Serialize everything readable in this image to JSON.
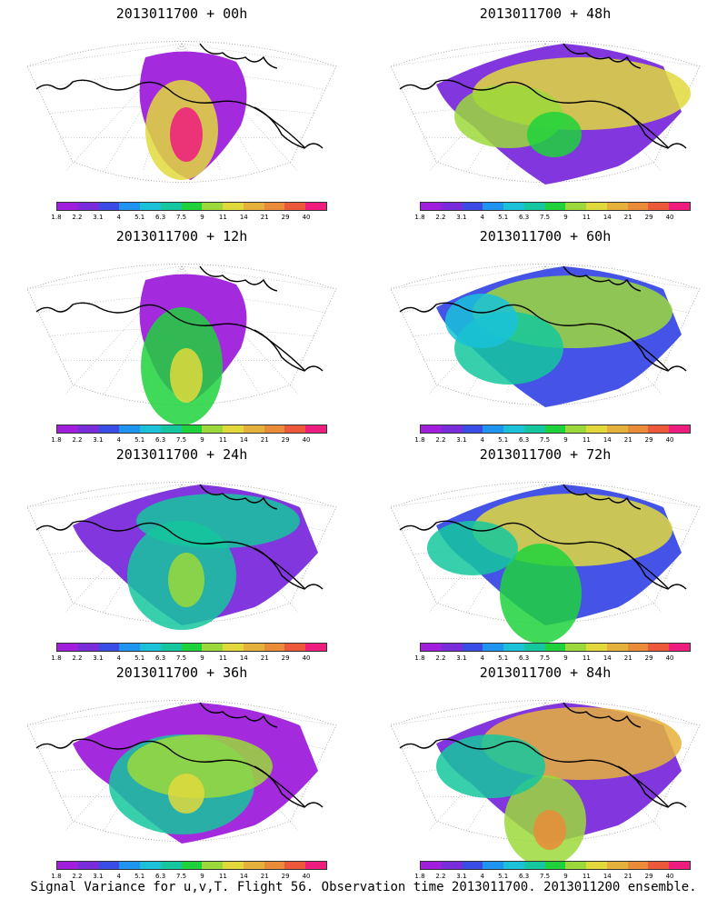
{
  "panels": [
    {
      "title": "2013011700 + 00h"
    },
    {
      "title": "2013011700 + 48h"
    },
    {
      "title": "2013011700 + 12h"
    },
    {
      "title": "2013011700 + 60h"
    },
    {
      "title": "2013011700 + 24h"
    },
    {
      "title": "2013011700 + 72h"
    },
    {
      "title": "2013011700 + 36h"
    },
    {
      "title": "2013011700 + 84h"
    }
  ],
  "colorbar": {
    "tick_labels": [
      "1.8",
      "2.2",
      "3.1",
      "4",
      "5.1",
      "6.3",
      "7.5",
      "9",
      "11",
      "14",
      "21",
      "29",
      "40"
    ],
    "colors": [
      "#9f1fdc",
      "#7a2bdc",
      "#3b4be6",
      "#1e93f0",
      "#19c2d9",
      "#15c79e",
      "#1fd23c",
      "#9bd93a",
      "#e0d93c",
      "#e6b13b",
      "#ea8b3a",
      "#ea5a3a",
      "#ef1b7e"
    ]
  },
  "caption": "Signal Variance for u,v,T. Flight 56. Observation time 2013011700. 2013011200 ensemble."
}
